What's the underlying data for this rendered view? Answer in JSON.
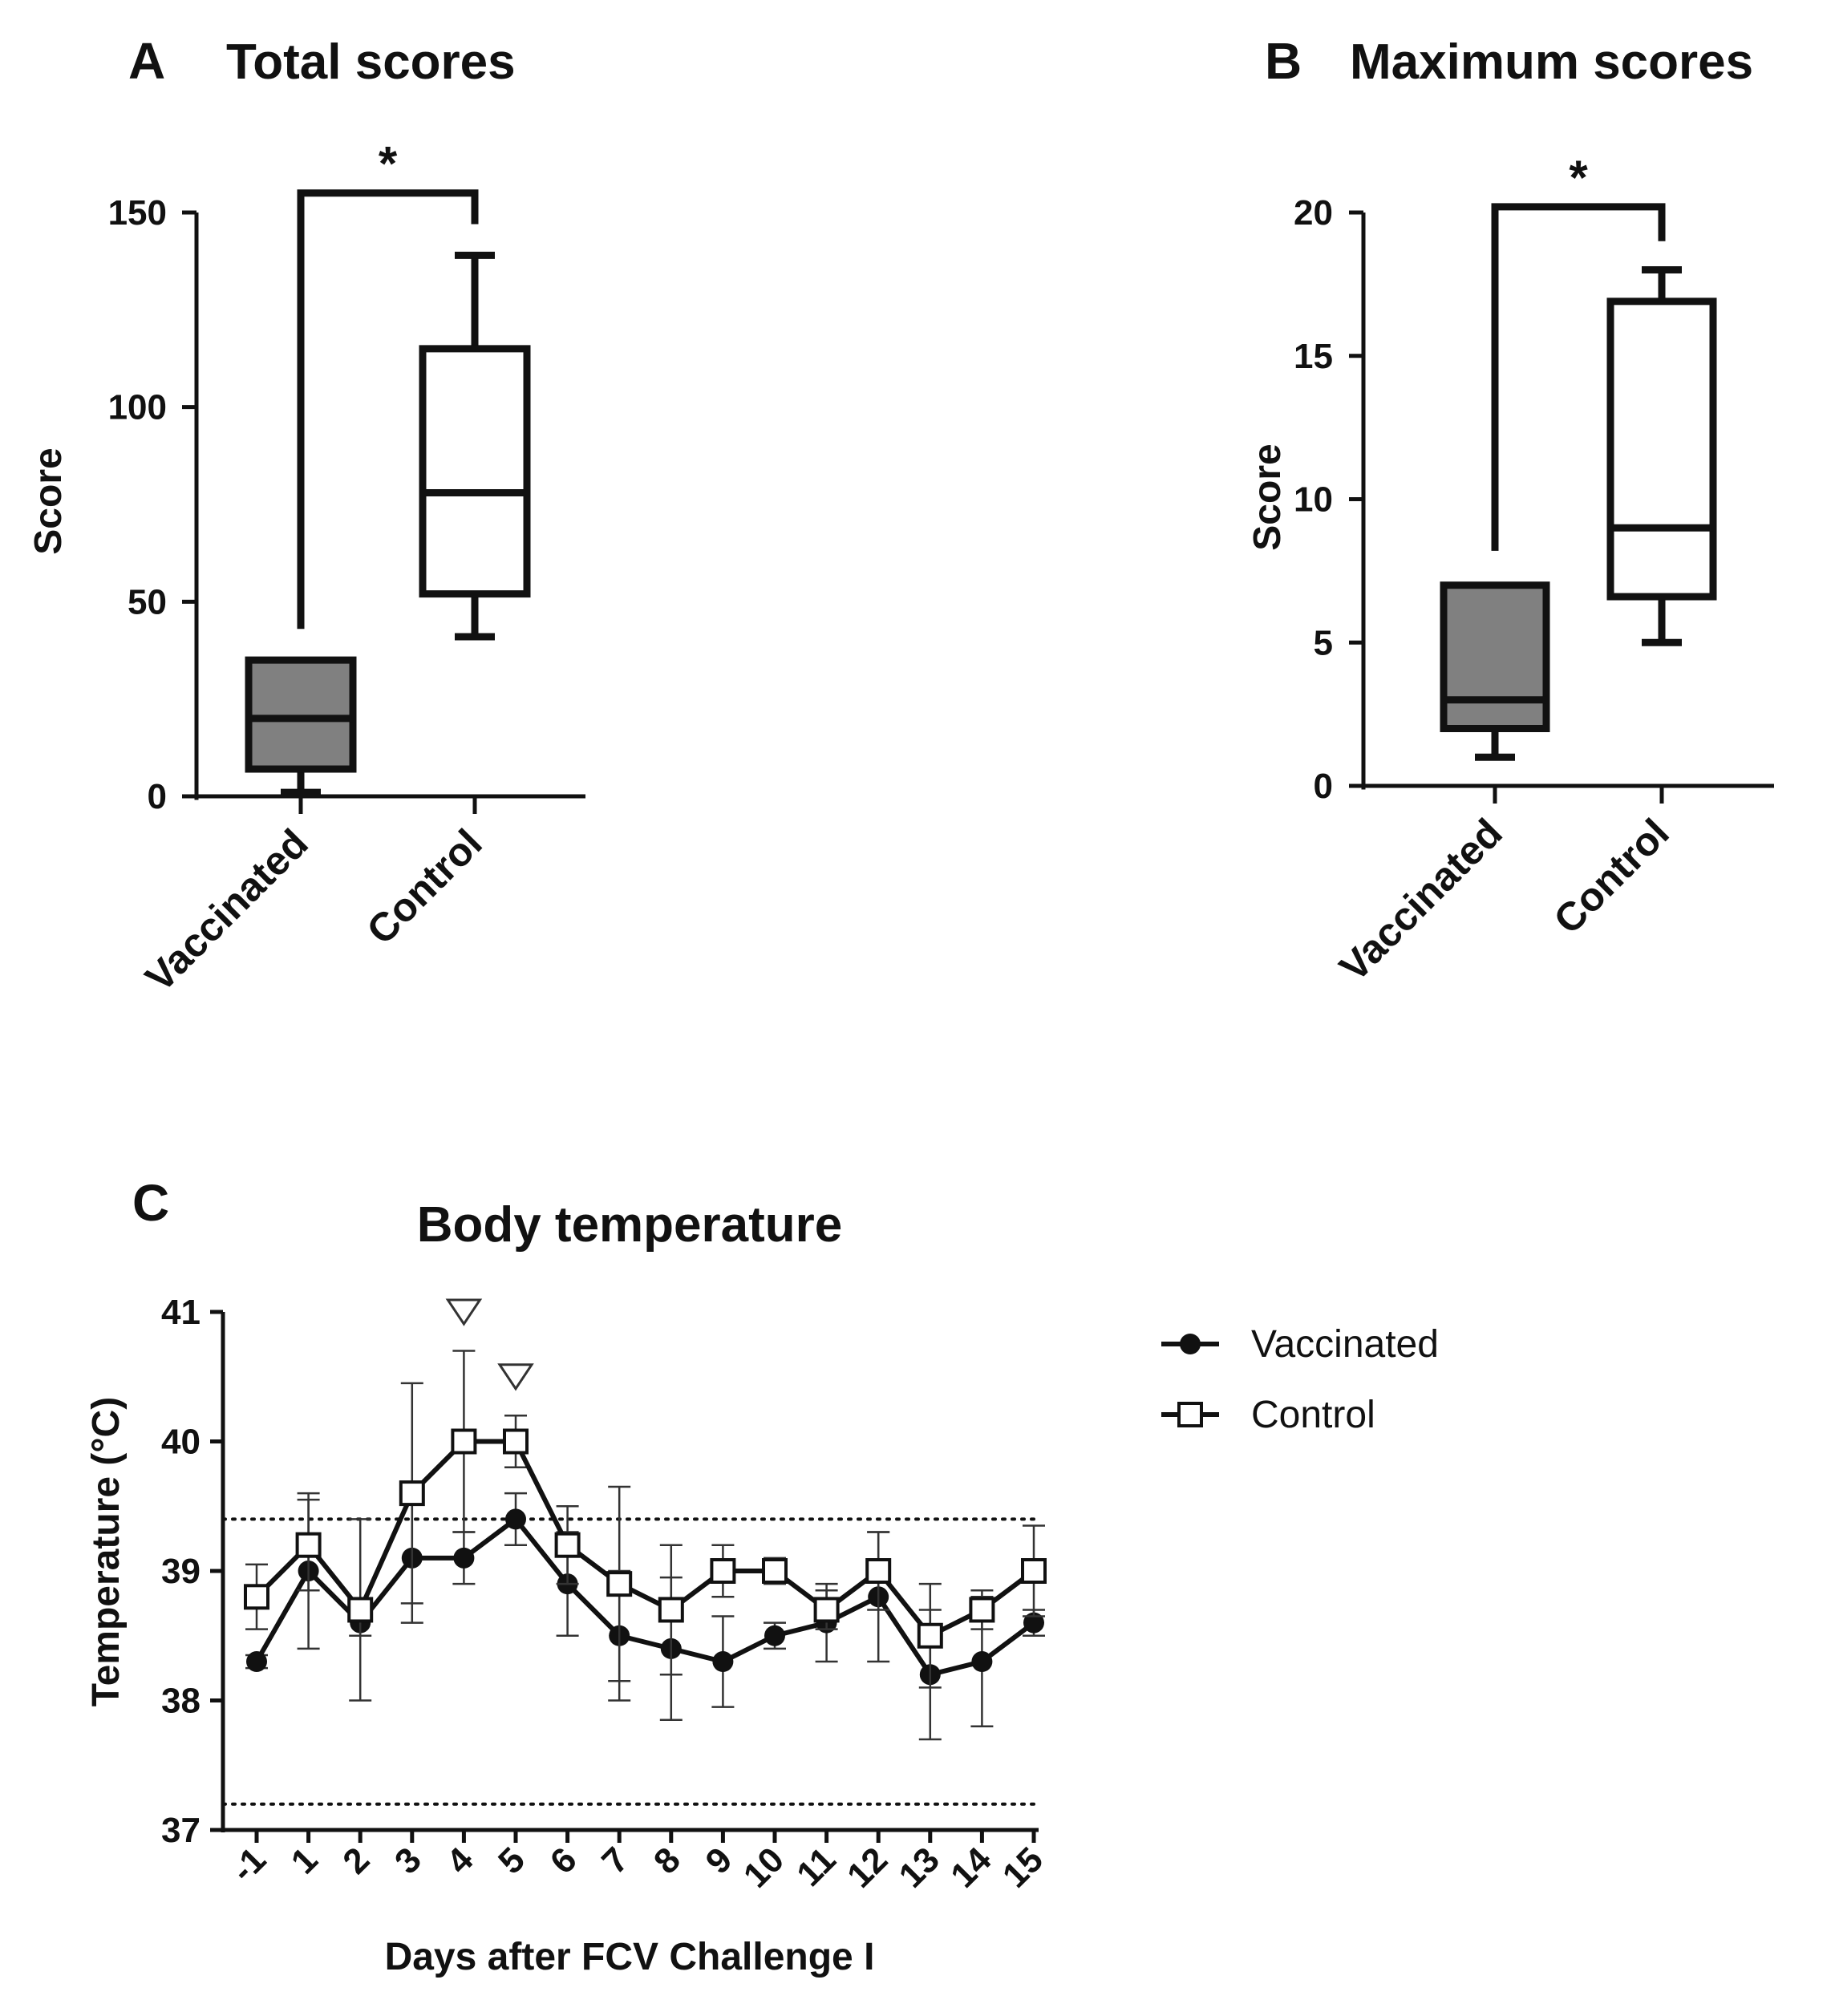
{
  "chart_data": [
    {
      "type": "box",
      "panel": "A",
      "title": "Total scores",
      "ylabel": "Score",
      "ylim": [
        0,
        150
      ],
      "yticks": [
        0,
        50,
        100,
        150
      ],
      "categories": [
        "Vaccinated",
        "Control"
      ],
      "boxes": [
        {
          "name": "Vaccinated",
          "min": 1,
          "q1": 7,
          "median": 20,
          "q3": 35,
          "max": 35,
          "color": "#808080"
        },
        {
          "name": "Control",
          "min": 41,
          "q1": 52,
          "median": 78,
          "q3": 115,
          "max": 139,
          "color": "#ffffff"
        }
      ],
      "significance": {
        "label": "*",
        "left_start": 43,
        "right_start": 147,
        "bar_y": 155
      }
    },
    {
      "type": "box",
      "panel": "B",
      "title": "Maximum scores",
      "ylabel": "Score",
      "ylim": [
        0,
        20
      ],
      "yticks": [
        0,
        5,
        10,
        15,
        20
      ],
      "categories": [
        "Vaccinated",
        "Control"
      ],
      "boxes": [
        {
          "name": "Vaccinated",
          "min": 1,
          "q1": 2,
          "median": 3,
          "q3": 7,
          "max": 7,
          "color": "#808080"
        },
        {
          "name": "Control",
          "min": 5,
          "q1": 6.6,
          "median": 9,
          "q3": 16.9,
          "max": 18,
          "color": "#ffffff"
        }
      ],
      "significance": {
        "label": "*",
        "left_start": 8.2,
        "right_start": 19,
        "bar_y": 20.2
      }
    },
    {
      "type": "line",
      "panel": "C",
      "title": "Body temperature",
      "xlabel": "Days after FCV Challenge I",
      "ylabel": "Temperature (°C)",
      "ylim": [
        37,
        41
      ],
      "yticks": [
        37,
        38,
        39,
        40,
        41
      ],
      "x": [
        "-1",
        "1",
        "2",
        "3",
        "4",
        "5",
        "6",
        "7",
        "8",
        "9",
        "10",
        "11",
        "12",
        "13",
        "14",
        "15"
      ],
      "series": [
        {
          "name": "Vaccinated",
          "marker": "filled-circle",
          "values": [
            38.3,
            39.0,
            38.6,
            39.1,
            39.1,
            39.4,
            38.9,
            38.5,
            38.4,
            38.3,
            38.5,
            38.6,
            38.8,
            38.2,
            38.3,
            38.6
          ],
          "errors": [
            0.05,
            0.6,
            0.1,
            0.5,
            0.2,
            0.2,
            0.4,
            0.5,
            0.55,
            0.35,
            0.1,
            0.3,
            0.5,
            0.5,
            0.5,
            0.1
          ]
        },
        {
          "name": "Control",
          "marker": "open-square",
          "values": [
            38.8,
            39.2,
            38.7,
            39.6,
            40.0,
            40.0,
            39.2,
            38.9,
            38.7,
            39.0,
            39.0,
            38.7,
            39.0,
            38.5,
            38.7,
            39.0
          ],
          "errors": [
            0.25,
            0.35,
            0.7,
            0.85,
            0.7,
            0.2,
            0.3,
            0.75,
            0.5,
            0.2,
            0.1,
            0.15,
            0.3,
            0.4,
            0.15,
            0.35
          ]
        }
      ],
      "reference_lines": [
        39.4,
        37.2
      ],
      "annotations": [
        {
          "x": "4",
          "y": 41.0,
          "symbol": "open-triangle-down"
        },
        {
          "x": "5",
          "y": 40.5,
          "symbol": "open-triangle-down"
        }
      ],
      "legend": {
        "position": "top-right",
        "entries": [
          "Vaccinated",
          "Control"
        ]
      }
    }
  ]
}
